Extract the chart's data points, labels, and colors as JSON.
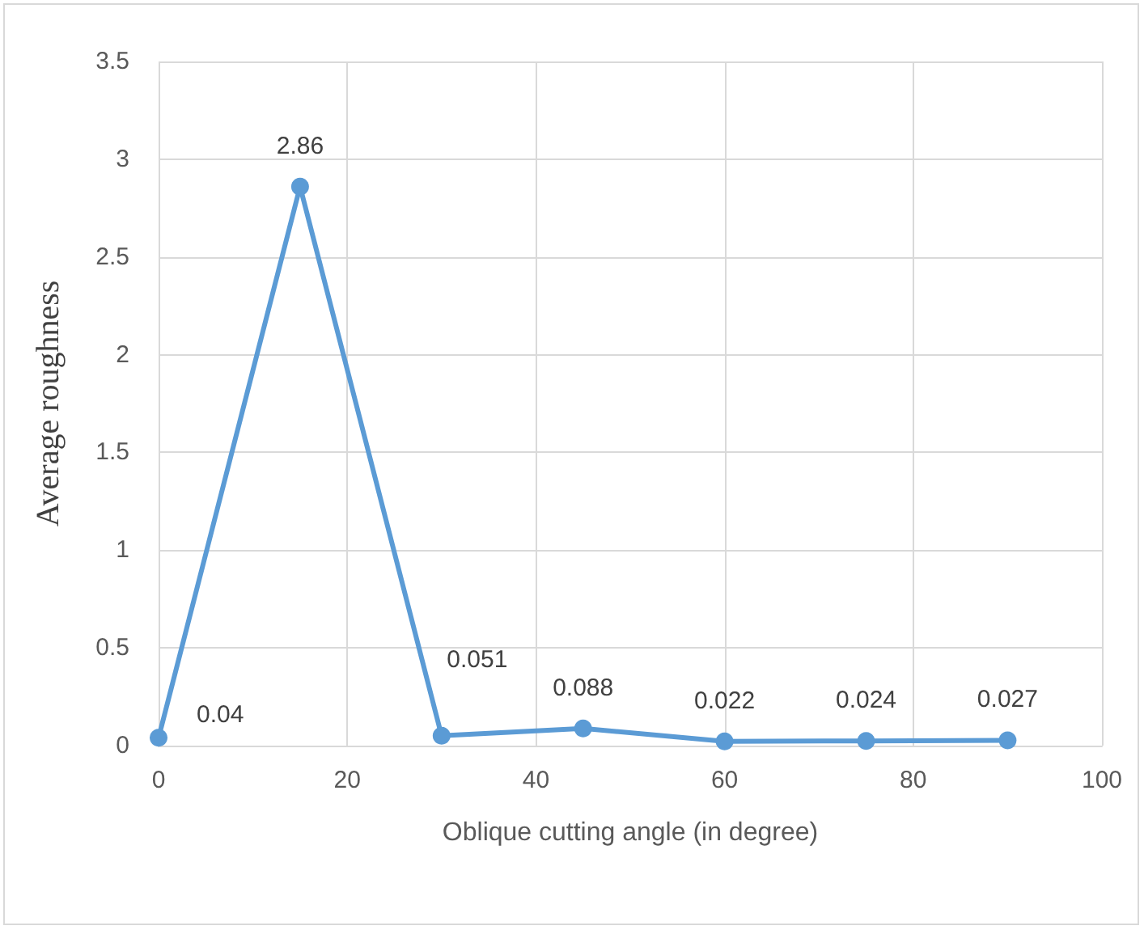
{
  "chart_data": {
    "type": "line",
    "xlabel": "Oblique cutting angle (in degree)",
    "ylabel": "Average roughness",
    "x": [
      0,
      15,
      30,
      45,
      60,
      75,
      90
    ],
    "series": [
      {
        "color": "#5b9bd5",
        "values": [
          0.04,
          2.86,
          0.051,
          0.088,
          0.022,
          0.024,
          0.027
        ]
      }
    ],
    "xlim": [
      0,
      100
    ],
    "xticks": [
      0,
      20,
      40,
      60,
      80,
      100
    ],
    "ylim": [
      0,
      3.5
    ],
    "yticks": [
      0,
      0.5,
      1,
      1.5,
      2,
      2.5,
      3,
      3.5
    ],
    "grid": true,
    "marker": "circle",
    "line_style": "solid",
    "data_labels": true
  }
}
